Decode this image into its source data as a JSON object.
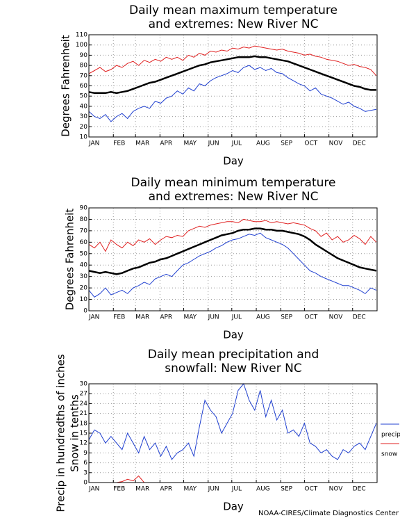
{
  "chart_data": [
    {
      "type": "line",
      "title": [
        "Daily mean maximum temperature",
        "and extremes: New River NC"
      ],
      "xlabel": "Day",
      "ylabel": [
        "Degrees Fahrenheit"
      ],
      "x": [
        1,
        8,
        15,
        22,
        29,
        36,
        43,
        50,
        57,
        64,
        71,
        78,
        85,
        92,
        99,
        106,
        113,
        120,
        127,
        134,
        141,
        148,
        155,
        162,
        169,
        176,
        183,
        190,
        197,
        204,
        211,
        218,
        225,
        232,
        239,
        246,
        253,
        260,
        267,
        274,
        281,
        288,
        295,
        302,
        309,
        316,
        323,
        330,
        337,
        344,
        351,
        358,
        365
      ],
      "xlim": [
        1,
        366
      ],
      "xticks": [
        {
          "value": 1,
          "label": "JAN"
        },
        {
          "value": 32,
          "label": "FEB"
        },
        {
          "value": 60,
          "label": "MAR"
        },
        {
          "value": 91,
          "label": "APR"
        },
        {
          "value": 121,
          "label": "MAY"
        },
        {
          "value": 152,
          "label": "JUN"
        },
        {
          "value": 182,
          "label": "JUL"
        },
        {
          "value": 213,
          "label": "AUG"
        },
        {
          "value": 244,
          "label": "SEP"
        },
        {
          "value": 274,
          "label": "OCT"
        },
        {
          "value": 305,
          "label": "NOV"
        },
        {
          "value": 335,
          "label": "DEC"
        }
      ],
      "ylim": [
        10,
        110
      ],
      "yticks": [
        10,
        20,
        30,
        40,
        50,
        60,
        70,
        80,
        90,
        100,
        110
      ],
      "grid": true,
      "series": [
        {
          "color": "#e02020",
          "width": 1,
          "values": [
            72,
            75,
            78,
            74,
            76,
            80,
            78,
            82,
            84,
            80,
            85,
            83,
            86,
            84,
            88,
            86,
            88,
            85,
            90,
            88,
            92,
            90,
            94,
            93,
            95,
            94,
            97,
            96,
            98,
            97,
            99,
            98,
            97,
            96,
            95,
            96,
            94,
            93,
            92,
            90,
            91,
            89,
            88,
            86,
            85,
            84,
            82,
            80,
            81,
            79,
            78,
            76,
            70
          ]
        },
        {
          "color": "#000000",
          "width": 2.5,
          "values": [
            54,
            53,
            53,
            53,
            54,
            53,
            54,
            55,
            57,
            59,
            61,
            63,
            64,
            66,
            68,
            70,
            72,
            74,
            76,
            78,
            80,
            81,
            83,
            84,
            85,
            86,
            87,
            88,
            88,
            88,
            89,
            88,
            88,
            87,
            86,
            85,
            84,
            82,
            80,
            78,
            76,
            74,
            72,
            70,
            68,
            66,
            64,
            62,
            60,
            59,
            57,
            56,
            56
          ]
        },
        {
          "color": "#2040d0",
          "width": 1,
          "values": [
            35,
            30,
            28,
            32,
            25,
            30,
            33,
            28,
            35,
            38,
            40,
            38,
            45,
            43,
            48,
            50,
            55,
            52,
            58,
            55,
            62,
            60,
            65,
            68,
            70,
            72,
            75,
            73,
            78,
            80,
            76,
            78,
            75,
            77,
            73,
            72,
            68,
            65,
            62,
            60,
            55,
            58,
            52,
            50,
            48,
            45,
            42,
            44,
            40,
            38,
            35,
            36,
            37
          ]
        }
      ]
    },
    {
      "type": "line",
      "title": [
        "Daily mean minimum temperature",
        "and extremes: New River NC"
      ],
      "xlabel": "Day",
      "ylabel": [
        "Degrees Fahrenheit"
      ],
      "x": [
        1,
        8,
        15,
        22,
        29,
        36,
        43,
        50,
        57,
        64,
        71,
        78,
        85,
        92,
        99,
        106,
        113,
        120,
        127,
        134,
        141,
        148,
        155,
        162,
        169,
        176,
        183,
        190,
        197,
        204,
        211,
        218,
        225,
        232,
        239,
        246,
        253,
        260,
        267,
        274,
        281,
        288,
        295,
        302,
        309,
        316,
        323,
        330,
        337,
        344,
        351,
        358,
        365
      ],
      "xlim": [
        1,
        366
      ],
      "xticks": [
        {
          "value": 1,
          "label": "JAN"
        },
        {
          "value": 32,
          "label": "FEB"
        },
        {
          "value": 60,
          "label": "MAR"
        },
        {
          "value": 91,
          "label": "APR"
        },
        {
          "value": 121,
          "label": "MAY"
        },
        {
          "value": 152,
          "label": "JUN"
        },
        {
          "value": 182,
          "label": "JUL"
        },
        {
          "value": 213,
          "label": "AUG"
        },
        {
          "value": 244,
          "label": "SEP"
        },
        {
          "value": 274,
          "label": "OCT"
        },
        {
          "value": 305,
          "label": "NOV"
        },
        {
          "value": 335,
          "label": "DEC"
        }
      ],
      "ylim": [
        0,
        90
      ],
      "yticks": [
        0,
        10,
        20,
        30,
        40,
        50,
        60,
        70,
        80,
        90
      ],
      "grid": true,
      "series": [
        {
          "color": "#e02020",
          "width": 1,
          "values": [
            58,
            55,
            60,
            52,
            62,
            58,
            55,
            60,
            57,
            62,
            60,
            63,
            58,
            62,
            65,
            64,
            66,
            65,
            70,
            72,
            74,
            73,
            75,
            76,
            77,
            78,
            78,
            77,
            80,
            79,
            78,
            78,
            79,
            77,
            78,
            77,
            76,
            77,
            76,
            75,
            72,
            70,
            65,
            68,
            62,
            65,
            60,
            62,
            66,
            63,
            58,
            65,
            60
          ]
        },
        {
          "color": "#000000",
          "width": 2.5,
          "values": [
            35,
            34,
            33,
            34,
            33,
            32,
            33,
            35,
            37,
            38,
            40,
            42,
            43,
            45,
            46,
            48,
            50,
            52,
            54,
            56,
            58,
            60,
            62,
            64,
            66,
            67,
            68,
            70,
            71,
            71,
            72,
            72,
            71,
            71,
            70,
            70,
            69,
            68,
            67,
            65,
            62,
            58,
            55,
            52,
            49,
            46,
            44,
            42,
            40,
            38,
            37,
            36,
            35
          ]
        },
        {
          "color": "#2040d0",
          "width": 1,
          "values": [
            18,
            12,
            15,
            20,
            14,
            16,
            18,
            15,
            20,
            22,
            25,
            23,
            28,
            30,
            32,
            30,
            35,
            40,
            42,
            45,
            48,
            50,
            52,
            55,
            57,
            60,
            62,
            63,
            65,
            67,
            66,
            68,
            64,
            62,
            60,
            58,
            55,
            50,
            45,
            40,
            35,
            33,
            30,
            28,
            26,
            24,
            22,
            22,
            20,
            18,
            15,
            20,
            18
          ]
        }
      ]
    },
    {
      "type": "line",
      "title": [
        "Daily mean precipitation and",
        "snowfall: New River NC"
      ],
      "xlabel": "Day",
      "ylabel": [
        "Precip in hundredths of inches",
        "Snow in tenths"
      ],
      "x": [
        1,
        8,
        15,
        22,
        29,
        36,
        43,
        50,
        57,
        64,
        71,
        78,
        85,
        92,
        99,
        106,
        113,
        120,
        127,
        134,
        141,
        148,
        155,
        162,
        169,
        176,
        183,
        190,
        197,
        204,
        211,
        218,
        225,
        232,
        239,
        246,
        253,
        260,
        267,
        274,
        281,
        288,
        295,
        302,
        309,
        316,
        323,
        330,
        337,
        344,
        351,
        358,
        365
      ],
      "xlim": [
        1,
        366
      ],
      "xticks": [
        {
          "value": 1,
          "label": "JAN"
        },
        {
          "value": 32,
          "label": "FEB"
        },
        {
          "value": 60,
          "label": "MAR"
        },
        {
          "value": 91,
          "label": "APR"
        },
        {
          "value": 121,
          "label": "MAY"
        },
        {
          "value": 152,
          "label": "JUN"
        },
        {
          "value": 182,
          "label": "JUL"
        },
        {
          "value": 213,
          "label": "AUG"
        },
        {
          "value": 244,
          "label": "SEP"
        },
        {
          "value": 274,
          "label": "OCT"
        },
        {
          "value": 305,
          "label": "NOV"
        },
        {
          "value": 335,
          "label": "DEC"
        }
      ],
      "ylim": [
        0,
        30
      ],
      "yticks": [
        0,
        3,
        6,
        9,
        12,
        15,
        18,
        21,
        24,
        27,
        30
      ],
      "grid": true,
      "legend": "right",
      "series": [
        {
          "name": "precip",
          "color": "#2040d0",
          "width": 1,
          "values": [
            13,
            16,
            15,
            12,
            14,
            12,
            10,
            15,
            12,
            9,
            14,
            10,
            12,
            8,
            11,
            7,
            9,
            10,
            12,
            8,
            17,
            25,
            22,
            20,
            15,
            18,
            21,
            28,
            30,
            25,
            22,
            28,
            20,
            25,
            19,
            22,
            15,
            16,
            14,
            18,
            12,
            11,
            9,
            10,
            8,
            7,
            10,
            9,
            11,
            12,
            10,
            14,
            18
          ]
        },
        {
          "name": "snow",
          "color": "#e02020",
          "width": 1,
          "values": [
            0,
            0,
            0,
            0,
            0,
            0,
            0.3,
            1,
            0.5,
            2,
            0,
            0,
            0,
            0,
            0,
            0,
            0,
            0,
            0,
            0,
            0,
            0,
            0,
            0,
            0,
            0,
            0,
            0,
            0,
            0,
            0,
            0,
            0,
            0,
            0,
            0,
            0,
            0,
            0,
            0,
            0,
            0,
            0,
            0,
            0,
            0,
            0,
            0,
            0,
            0,
            0,
            0,
            0
          ]
        }
      ]
    }
  ],
  "footer": "NOAA-CIRES/Climate Diagnostics Center"
}
